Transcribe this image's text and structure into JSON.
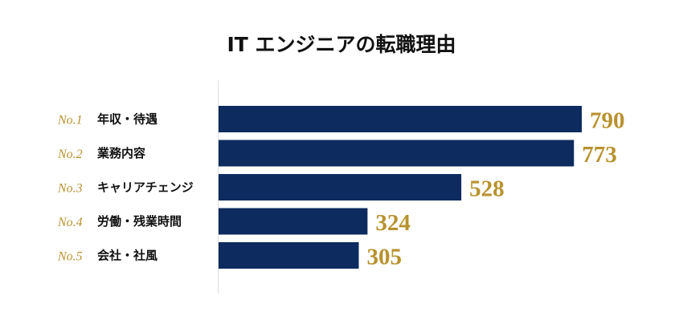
{
  "chart_data": {
    "type": "bar",
    "orientation": "horizontal",
    "title": "IT エンジニアの転職理由",
    "ranks": [
      "No.1",
      "No.2",
      "No.3",
      "No.4",
      "No.5"
    ],
    "categories": [
      "年収・待遇",
      "業務内容",
      "キャリアチェンジ",
      "労働・残業時間",
      "会社・社風"
    ],
    "values": [
      790,
      773,
      528,
      324,
      305
    ],
    "xlim": [
      0,
      790
    ],
    "grid": false,
    "legend": "none"
  },
  "colors": {
    "bar": "#0d2b5e",
    "value_label": "#b8922e",
    "rank_label": "#b8922e",
    "axis": "#dddddd",
    "title": "#111111"
  }
}
